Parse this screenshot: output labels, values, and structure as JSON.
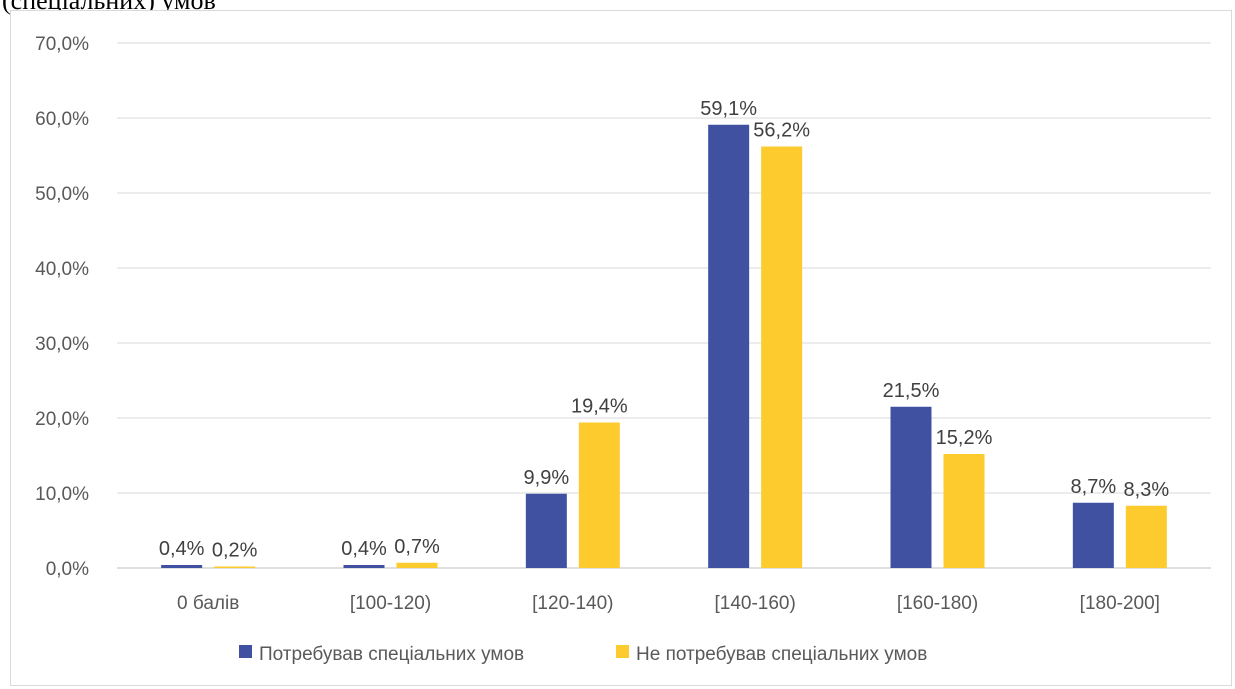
{
  "caption": "(спеціальних) умов",
  "chart_data": {
    "type": "bar",
    "categories": [
      "0 балів",
      "[100-120)",
      "[120-140)",
      "[140-160)",
      "[160-180)",
      "[180-200]"
    ],
    "series": [
      {
        "name": "Потребував спеціальних умов",
        "color": "#3f51a0",
        "values": [
          0.4,
          0.4,
          9.9,
          59.1,
          21.5,
          8.7
        ],
        "labels": [
          "0,4%",
          "0,4%",
          "9,9%",
          "59,1%",
          "21,5%",
          "8,7%"
        ]
      },
      {
        "name": "Не потребував спеціальних умов",
        "color": "#fdcb2e",
        "values": [
          0.2,
          0.7,
          19.4,
          56.2,
          15.2,
          8.3
        ],
        "labels": [
          "0,2%",
          "0,7%",
          "19,4%",
          "56,2%",
          "15,2%",
          "8,3%"
        ]
      }
    ],
    "ylim": [
      0,
      70
    ],
    "yticks": [
      {
        "value": 0,
        "label": "0,0%"
      },
      {
        "value": 10,
        "label": "10,0%"
      },
      {
        "value": 20,
        "label": "20,0%"
      },
      {
        "value": 30,
        "label": "30,0%"
      },
      {
        "value": 40,
        "label": "40,0%"
      },
      {
        "value": 50,
        "label": "50,0%"
      },
      {
        "value": 60,
        "label": "60,0%"
      },
      {
        "value": 70,
        "label": "70,0%"
      }
    ],
    "grid": true,
    "legend": "bottom",
    "title": "",
    "xlabel": "",
    "ylabel": ""
  }
}
